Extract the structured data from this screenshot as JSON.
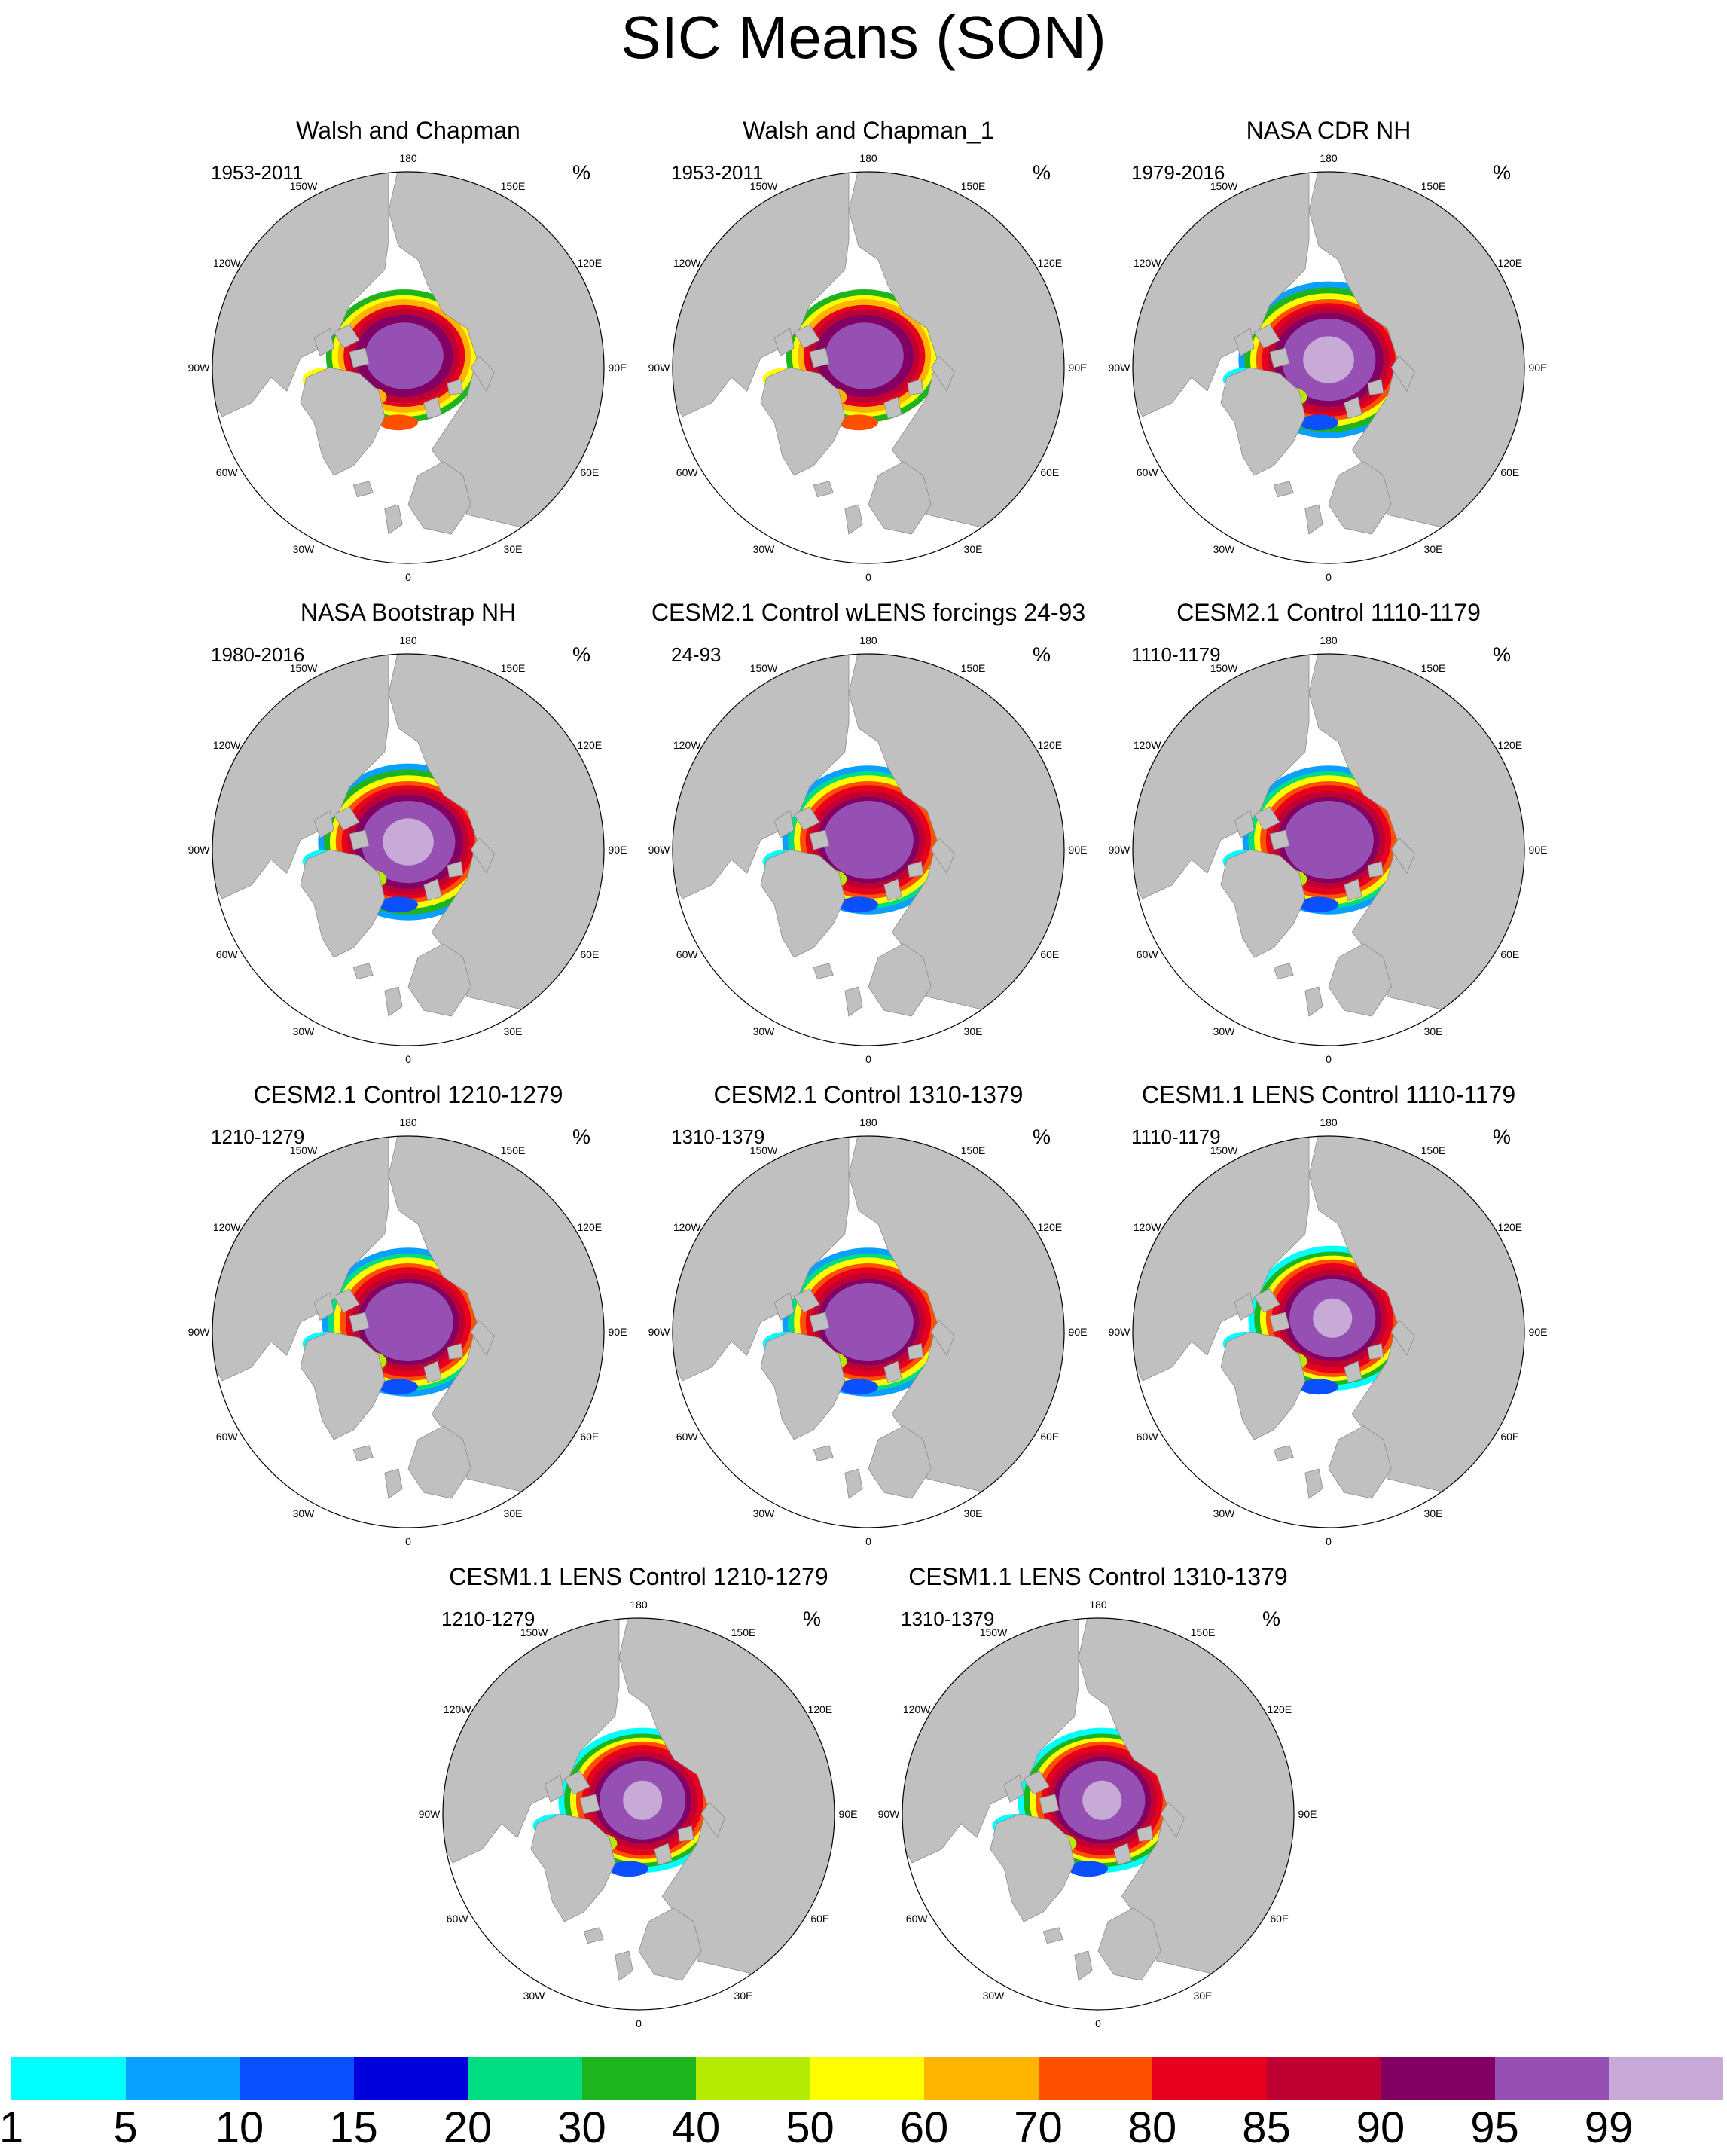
{
  "title": "SIC Means (SON)",
  "unit": "%",
  "longitude_labels": [
    "180",
    "150E",
    "120E",
    "90E",
    "60E",
    "30E",
    "0",
    "30W",
    "60W",
    "90W",
    "120W",
    "150W"
  ],
  "panels": [
    {
      "name": "Walsh and Chapman",
      "period": "1953-2011",
      "pattern": "walsh"
    },
    {
      "name": "Walsh and Chapman_1",
      "period": "1953-2011",
      "pattern": "walsh"
    },
    {
      "name": "NASA CDR NH",
      "period": "1979-2016",
      "pattern": "obs"
    },
    {
      "name": "NASA Bootstrap NH",
      "period": "1980-2016",
      "pattern": "obs"
    },
    {
      "name": "CESM2.1 Control wLENS forcings 24-93",
      "period": "24-93",
      "pattern": "model"
    },
    {
      "name": "CESM2.1 Control 1110-1179",
      "period": "1110-1179",
      "pattern": "model"
    },
    {
      "name": "CESM2.1 Control 1210-1279",
      "period": "1210-1279",
      "pattern": "model"
    },
    {
      "name": "CESM2.1 Control 1310-1379",
      "period": "1310-1379",
      "pattern": "model"
    },
    {
      "name": "CESM1.1 LENS Control 1110-1179",
      "period": "1110-1179",
      "pattern": "lens"
    },
    {
      "name": "CESM1.1 LENS Control 1210-1279",
      "period": "1210-1279",
      "pattern": "lens"
    },
    {
      "name": "CESM1.1 LENS Control 1310-1379",
      "period": "1310-1379",
      "pattern": "lens"
    }
  ],
  "colorbar": {
    "labels": [
      "1",
      "5",
      "10",
      "15",
      "20",
      "30",
      "40",
      "50",
      "60",
      "70",
      "80",
      "85",
      "90",
      "95",
      "99"
    ],
    "colors": [
      "#00ffff",
      "#0aa0ff",
      "#0a50ff",
      "#0000dc",
      "#00dc82",
      "#1eb41e",
      "#b4eb00",
      "#ffff00",
      "#ffb400",
      "#ff5000",
      "#e6001e",
      "#be0032",
      "#820064",
      "#9650b4",
      "#c8aad7"
    ]
  },
  "land_color": "#c0c0c0",
  "ocean_color": "#ffffff"
}
